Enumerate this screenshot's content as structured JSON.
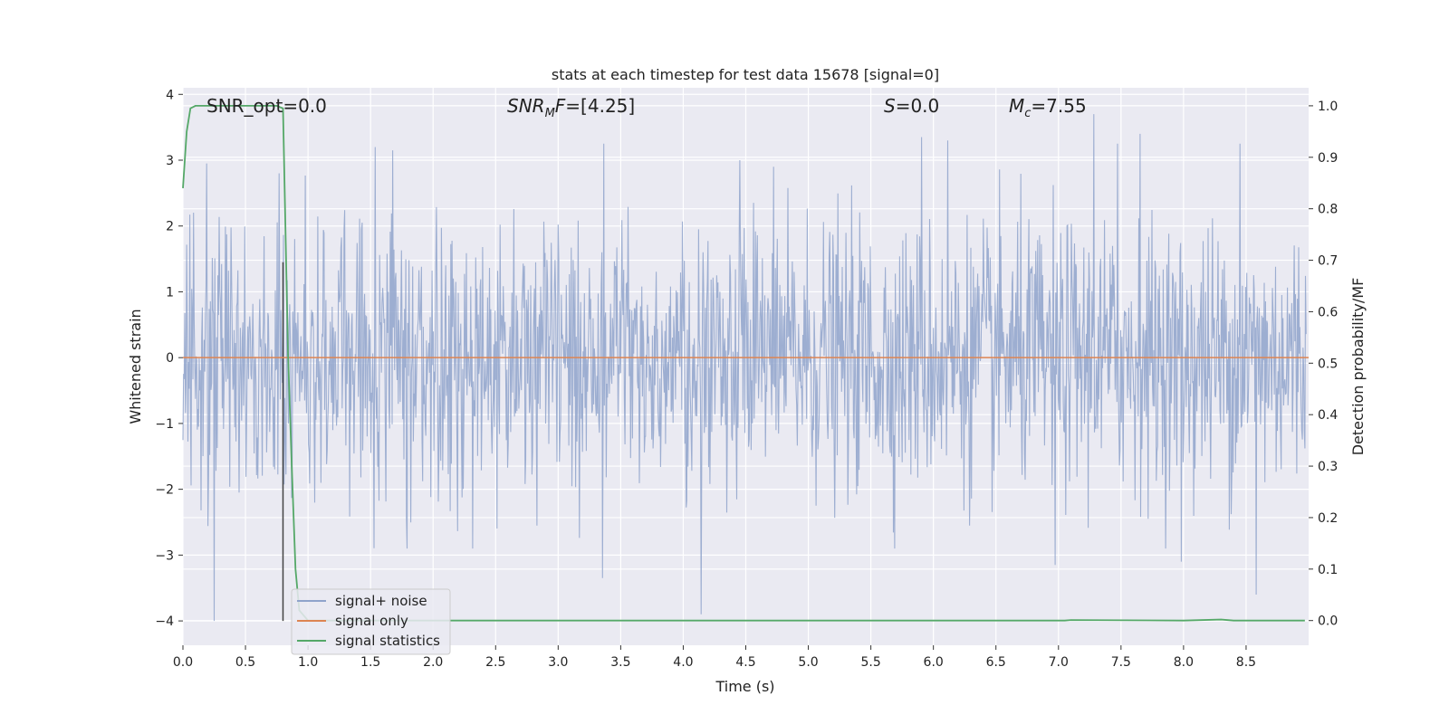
{
  "chart_data": {
    "type": "line",
    "title": "stats at each timestep for test data 15678 [signal=0]",
    "xlabel": "Time (s)",
    "ylabel": "Whitened strain",
    "ylabel_right": "Detection probability/MF",
    "xlim": [
      0.0,
      9.0
    ],
    "ylim": [
      -4.37,
      4.1
    ],
    "ylim_right": [
      -0.048,
      1.035
    ],
    "xticks": [
      "0.0",
      "0.5",
      "1.0",
      "1.5",
      "2.0",
      "2.5",
      "3.0",
      "3.5",
      "4.0",
      "4.5",
      "5.0",
      "5.5",
      "6.0",
      "6.5",
      "7.0",
      "7.5",
      "8.0",
      "8.5"
    ],
    "yticks": [
      "4",
      "3",
      "2",
      "1",
      "0",
      "−1",
      "−2",
      "−3",
      "−4"
    ],
    "yticks_right": [
      "1.0",
      "0.9",
      "0.8",
      "0.7",
      "0.6",
      "0.5",
      "0.4",
      "0.3",
      "0.2",
      "0.1",
      "0.0"
    ],
    "grid": true,
    "legend_position": "lower-left",
    "annotations": {
      "snr_opt": "SNR_opt=0.0",
      "snr_mf": "SNR_MF=[4.25]",
      "s_stat": "S=0.0",
      "chirp_mass": "M_c=7.55"
    },
    "vertical_marker_x": 0.8,
    "series": [
      {
        "name": "signal+ noise",
        "axis": "left",
        "color": "#8fa3cb",
        "description": "whitened Gaussian noise, approx. std 1 over 0 to 9 s",
        "peaks": [
          {
            "x": 0.25,
            "y": -4.0
          },
          {
            "x": 0.19,
            "y": 2.95
          },
          {
            "x": 0.77,
            "y": 2.8
          },
          {
            "x": 1.54,
            "y": 3.2
          },
          {
            "x": 1.68,
            "y": 3.15
          },
          {
            "x": 3.37,
            "y": 3.25
          },
          {
            "x": 3.36,
            "y": -3.35
          },
          {
            "x": 4.15,
            "y": -3.9
          },
          {
            "x": 4.46,
            "y": 3.0
          },
          {
            "x": 5.92,
            "y": 3.35
          },
          {
            "x": 6.13,
            "y": 3.3
          },
          {
            "x": 7.3,
            "y": 3.7
          },
          {
            "x": 7.49,
            "y": 3.25
          },
          {
            "x": 7.67,
            "y": 3.4
          },
          {
            "x": 8.47,
            "y": 3.25
          },
          {
            "x": 8.6,
            "y": -3.6
          },
          {
            "x": 8.0,
            "y": -3.1
          },
          {
            "x": 6.99,
            "y": -3.15
          }
        ]
      },
      {
        "name": "signal only",
        "axis": "left",
        "color": "#dd8452",
        "x": [
          0.0,
          9.0
        ],
        "y": [
          0.0,
          0.0
        ]
      },
      {
        "name": "signal statistics",
        "axis": "right",
        "color": "#55a868",
        "x": [
          0.0,
          0.03,
          0.06,
          0.1,
          0.2,
          0.5,
          0.75,
          0.8,
          0.84,
          0.87,
          0.9,
          0.93,
          1.0,
          2.0,
          4.0,
          6.0,
          7.05,
          7.1,
          8.0,
          8.3,
          8.4,
          8.97
        ],
        "y": [
          0.84,
          0.95,
          0.995,
          1.0,
          1.0,
          1.0,
          1.0,
          0.995,
          0.52,
          0.3,
          0.1,
          0.02,
          0.0,
          0.0,
          0.0,
          0.0,
          0.0,
          0.001,
          0.0,
          0.002,
          0.0,
          0.0
        ]
      }
    ]
  }
}
